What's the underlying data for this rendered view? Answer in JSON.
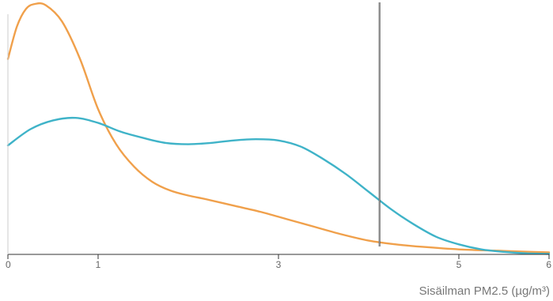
{
  "chart_data": {
    "type": "line",
    "xlabel": "Sisäilman PM2.5 (µg/m³)",
    "ylabel": "",
    "xlim": [
      0,
      6
    ],
    "ylim": [
      0,
      1
    ],
    "grid": false,
    "x_ticks": [
      {
        "value": 0,
        "label": "0"
      },
      {
        "value": 1,
        "label": "1"
      },
      {
        "value": 3,
        "label": "3"
      },
      {
        "value": 5,
        "label": "5"
      },
      {
        "value": 6,
        "label": "6"
      }
    ],
    "series": [
      {
        "color": "#F0A04B",
        "x": [
          0,
          0.1,
          0.2,
          0.3,
          0.42,
          0.6,
          0.8,
          1.0,
          1.2,
          1.4,
          1.6,
          1.8,
          2.0,
          2.2,
          2.5,
          2.8,
          3.1,
          3.4,
          3.7,
          4.0,
          4.3,
          4.6,
          5.0,
          5.4,
          5.8,
          6.0
        ],
        "values": [
          0.78,
          0.91,
          0.98,
          1.0,
          0.995,
          0.93,
          0.78,
          0.58,
          0.44,
          0.35,
          0.29,
          0.255,
          0.235,
          0.22,
          0.195,
          0.17,
          0.14,
          0.11,
          0.08,
          0.055,
          0.04,
          0.03,
          0.02,
          0.015,
          0.01,
          0.008
        ]
      },
      {
        "color": "#3FB3C8",
        "x": [
          0,
          0.25,
          0.5,
          0.75,
          1.0,
          1.25,
          1.5,
          1.75,
          2.0,
          2.25,
          2.5,
          2.75,
          3.0,
          3.25,
          3.5,
          3.75,
          4.0,
          4.25,
          4.5,
          4.75,
          5.0,
          5.25,
          5.5,
          5.75,
          6.0
        ],
        "values": [
          0.435,
          0.5,
          0.535,
          0.545,
          0.525,
          0.49,
          0.465,
          0.445,
          0.44,
          0.445,
          0.455,
          0.46,
          0.455,
          0.43,
          0.38,
          0.32,
          0.25,
          0.18,
          0.12,
          0.07,
          0.04,
          0.02,
          0.01,
          0.004,
          0.002
        ]
      }
    ],
    "vertical_line": {
      "x": 4.12,
      "color": "#555555"
    }
  }
}
